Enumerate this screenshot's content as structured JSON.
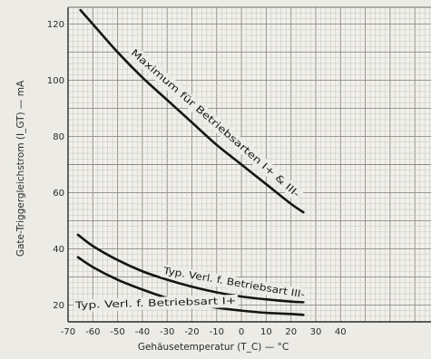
{
  "chart_data": {
    "type": "line",
    "title": "",
    "xlabel": "Gehäusetemperatur (T_C) — °C",
    "ylabel": "Gate-Triggergleichstrom (I_GT) — mA",
    "xlim": [
      -70,
      40
    ],
    "ylim": [
      14,
      126
    ],
    "x_ticks": [
      -70,
      -60,
      -50,
      -40,
      -30,
      -20,
      -10,
      0,
      10,
      20,
      30,
      40
    ],
    "x_tick_labels": [
      "-70",
      "-60",
      "-50",
      "-40",
      "-30",
      "-20",
      "-10",
      "0",
      "10",
      "20",
      "30",
      "40"
    ],
    "y_ticks": [
      20,
      40,
      60,
      80,
      100,
      120
    ],
    "y_tick_labels": [
      "20",
      "40",
      "60",
      "80",
      "100",
      "120"
    ],
    "grid": true,
    "legend": "none",
    "series": [
      {
        "name": "Maximum für Betriebsarten I+ & III-",
        "x": [
          -65,
          -60,
          -50,
          -40,
          -30,
          -20,
          -10,
          0,
          10,
          20,
          25
        ],
        "y": [
          125,
          120,
          110,
          101,
          93,
          85,
          77,
          70,
          63,
          56,
          53
        ]
      },
      {
        "name": "Typ. Verl. f. Betriebsart III-",
        "x": [
          -66,
          -60,
          -50,
          -40,
          -30,
          -20,
          -10,
          0,
          10,
          20,
          25
        ],
        "y": [
          45,
          41,
          36,
          32,
          29,
          26.5,
          24.5,
          23,
          22,
          21.2,
          21
        ]
      },
      {
        "name": "Typ. Verl. f. Betriebsart I+",
        "x": [
          -66,
          -60,
          -50,
          -40,
          -30,
          -20,
          -10,
          0,
          10,
          20,
          25
        ],
        "y": [
          37,
          33.5,
          29,
          25.5,
          22.5,
          20.5,
          19,
          18,
          17.2,
          16.8,
          16.5
        ]
      }
    ]
  }
}
